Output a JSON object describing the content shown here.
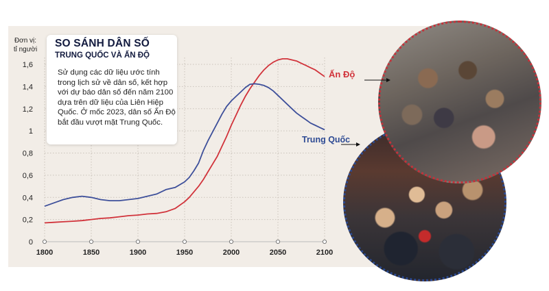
{
  "unit_label_line1": "Đơn vị:",
  "unit_label_line2": "tỉ người",
  "infobox": {
    "title": "SO SÁNH DÂN SỐ",
    "subtitle": "TRUNG QUỐC VÀ ẤN ĐỘ",
    "text": "Sử dụng các dữ liệu ước tính trong lịch sử về dân số, kết hợp với dự báo dân số đến năm 2100 dựa trên dữ liệu của Liên Hiệp Quốc. Ở mốc 2023, dân số Ấn Độ bắt đầu vượt mặt Trung Quốc."
  },
  "photos": {
    "india": "crowd-photo-india",
    "china": "crowd-photo-china"
  },
  "colors": {
    "india": "#d1323a",
    "china": "#3d4f9a",
    "panel_bg": "#f2ede7",
    "grid": "#c9c2ba"
  },
  "chart_data": {
    "type": "line",
    "title": "",
    "ylabel": "Đơn vị: tỉ người",
    "xlabel": "",
    "xlim": [
      1800,
      2100
    ],
    "ylim": [
      0,
      1.6
    ],
    "x_ticks": [
      1800,
      1850,
      1900,
      1950,
      2000,
      2050,
      2100
    ],
    "y_ticks": [
      0,
      0.2,
      0.4,
      0.6,
      0.8,
      1,
      1.2,
      1.4,
      1.6
    ],
    "y_tick_labels": [
      "0",
      "0,2",
      "0,4",
      "0,6",
      "0,8",
      "1",
      "1,2",
      "1,4",
      "1,6"
    ],
    "grid": "horizontal-dotted",
    "series": [
      {
        "name": "Ấn Độ",
        "color": "#d1323a",
        "points": [
          [
            1800,
            0.17
          ],
          [
            1810,
            0.175
          ],
          [
            1820,
            0.18
          ],
          [
            1830,
            0.185
          ],
          [
            1840,
            0.19
          ],
          [
            1850,
            0.2
          ],
          [
            1860,
            0.21
          ],
          [
            1870,
            0.215
          ],
          [
            1880,
            0.225
          ],
          [
            1890,
            0.235
          ],
          [
            1900,
            0.24
          ],
          [
            1910,
            0.25
          ],
          [
            1920,
            0.255
          ],
          [
            1930,
            0.27
          ],
          [
            1940,
            0.3
          ],
          [
            1950,
            0.36
          ],
          [
            1955,
            0.4
          ],
          [
            1960,
            0.45
          ],
          [
            1965,
            0.5
          ],
          [
            1970,
            0.56
          ],
          [
            1975,
            0.63
          ],
          [
            1980,
            0.7
          ],
          [
            1985,
            0.77
          ],
          [
            1990,
            0.86
          ],
          [
            1995,
            0.95
          ],
          [
            2000,
            1.05
          ],
          [
            2005,
            1.14
          ],
          [
            2010,
            1.23
          ],
          [
            2015,
            1.31
          ],
          [
            2020,
            1.38
          ],
          [
            2025,
            1.44
          ],
          [
            2030,
            1.5
          ],
          [
            2035,
            1.55
          ],
          [
            2040,
            1.59
          ],
          [
            2045,
            1.62
          ],
          [
            2050,
            1.64
          ],
          [
            2055,
            1.65
          ],
          [
            2060,
            1.65
          ],
          [
            2065,
            1.64
          ],
          [
            2070,
            1.63
          ],
          [
            2075,
            1.61
          ],
          [
            2080,
            1.59
          ],
          [
            2085,
            1.57
          ],
          [
            2090,
            1.55
          ],
          [
            2095,
            1.52
          ],
          [
            2100,
            1.49
          ]
        ]
      },
      {
        "name": "Trung Quốc",
        "color": "#3d4f9a",
        "points": [
          [
            1800,
            0.32
          ],
          [
            1810,
            0.35
          ],
          [
            1820,
            0.38
          ],
          [
            1830,
            0.4
          ],
          [
            1840,
            0.41
          ],
          [
            1850,
            0.4
          ],
          [
            1860,
            0.38
          ],
          [
            1870,
            0.37
          ],
          [
            1880,
            0.37
          ],
          [
            1890,
            0.38
          ],
          [
            1900,
            0.39
          ],
          [
            1910,
            0.41
          ],
          [
            1920,
            0.43
          ],
          [
            1930,
            0.47
          ],
          [
            1940,
            0.49
          ],
          [
            1950,
            0.54
          ],
          [
            1955,
            0.58
          ],
          [
            1960,
            0.64
          ],
          [
            1965,
            0.71
          ],
          [
            1970,
            0.82
          ],
          [
            1975,
            0.91
          ],
          [
            1980,
            0.99
          ],
          [
            1985,
            1.07
          ],
          [
            1990,
            1.15
          ],
          [
            1995,
            1.22
          ],
          [
            2000,
            1.27
          ],
          [
            2005,
            1.31
          ],
          [
            2010,
            1.35
          ],
          [
            2015,
            1.39
          ],
          [
            2020,
            1.42
          ],
          [
            2025,
            1.425
          ],
          [
            2030,
            1.42
          ],
          [
            2035,
            1.41
          ],
          [
            2040,
            1.39
          ],
          [
            2045,
            1.36
          ],
          [
            2050,
            1.32
          ],
          [
            2055,
            1.28
          ],
          [
            2060,
            1.24
          ],
          [
            2065,
            1.2
          ],
          [
            2070,
            1.16
          ],
          [
            2075,
            1.13
          ],
          [
            2080,
            1.1
          ],
          [
            2085,
            1.07
          ],
          [
            2090,
            1.05
          ],
          [
            2095,
            1.03
          ],
          [
            2100,
            1.01
          ]
        ]
      }
    ]
  }
}
